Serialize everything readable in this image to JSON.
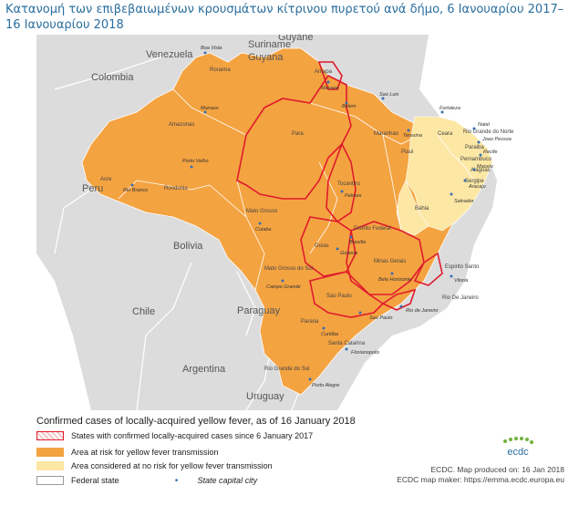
{
  "caption": "Κατανομή των επιβεβαιωμένων κρουσμάτων κίτρινου πυρετού ανά δήμο, 6 Ιανουαρίου 2017–16 Ιανουαρίου 2018",
  "colors": {
    "confirmed_border": "#e01a2c",
    "risk_area": "#f4a341",
    "no_risk_area": "#fce7a4",
    "neighbor_country": "#dcdcdc",
    "federal_state": "#ffffff",
    "capital_dot": "#3a6fb0"
  },
  "countries": {
    "colombia": "Colombia",
    "venezuela": "Venezuela",
    "guyana": "Guyana",
    "guyane": "Guyane",
    "suriname": "Suriname",
    "peru": "Peru",
    "bolivia": "Bolivia",
    "chile": "Chile",
    "paraguay": "Paraguay",
    "argentina": "Argentina",
    "uruguay": "Uruguay"
  },
  "states": {
    "roraima": "Roraima",
    "amapa": "Amapa",
    "amazonas": "Amazonas",
    "para": "Para",
    "maranhao": "Maranhao",
    "ceara": "Ceara",
    "rio_grande_do_norte": "Rio Grande do Norte",
    "paraiba": "Paraiba",
    "pernambuco": "Pernambuco",
    "piaui": "Piaui",
    "alagoas": "Alagoas",
    "sergipe": "Sergipe",
    "acre": "Acre",
    "rondonia": "Rondonia",
    "tocantins": "Tocantins",
    "bahia": "Bahia",
    "mato_grosso": "Mato Grosso",
    "distrito_federal": "Distrito Federal",
    "goias": "Goias",
    "minas_gerais": "Minas Gerais",
    "mato_grosso_do_sul": "Mato Grosso do Sul",
    "espirito_santo": "Espirito Santo",
    "sao_paulo": "Sao Paulo",
    "rio_de_janeiro": "Rio De Janeiro",
    "parana": "Parana",
    "santa_catarina": "Santa Catarina",
    "rio_grande_do_sul": "Rio Grande do Sul"
  },
  "capitals": {
    "boa_vista": "Boa Vista",
    "macapa": "Macapa",
    "manaus": "Manaus",
    "belem": "Belem",
    "sao_luis": "Sao Luis",
    "fortaleza": "Fortaleza",
    "teresina": "Teresina",
    "natal": "Natal",
    "joao_pessoa": "Joao Pessoa",
    "recife": "Recife",
    "maceio": "Maceio",
    "aracaju": "Aracaju",
    "salvador": "Salvador",
    "palmas": "Palmas",
    "porto_velho": "Porto Velho",
    "rio_branco": "Rio Branco",
    "cuiaba": "Cuiaba",
    "brasilia": "Brasilia",
    "goiania": "Goiania",
    "belo_horizonte": "Belo Horizonte",
    "vitoria": "Vitoria",
    "campo_grande": "Campo Grande",
    "sao_paulo": "Sao Paulo",
    "rio_de_janeiro": "Rio de Janeiro",
    "curitiba": "Curitiba",
    "florianopolis": "Florianopolis",
    "porto_alegre": "Porto Alegre"
  },
  "legend": {
    "title": "Confirmed cases of locally-acquired yellow fever, as of 16 January 2018",
    "confirmed": "States with confirmed locally-acquired cases since 6 January 2017",
    "risk": "Area at risk for yellow fever transmission",
    "no_risk": "Area considered at no risk for yellow fever transmission",
    "federal_state": "Federal state",
    "capital": "State capital city"
  },
  "credits": {
    "logo_text": "ecdc",
    "produced": "ECDC. Map produced on: 16 Jan 2018",
    "maker": "ECDC map maker: https://emma.ecdc.europa.eu"
  }
}
